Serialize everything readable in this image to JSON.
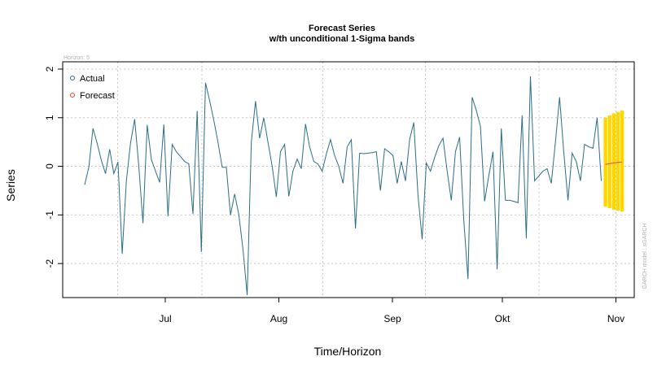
{
  "chart_data": {
    "type": "line",
    "title": "Forecast Series",
    "subtitle": "w/th unconditional 1-Sigma bands",
    "xlabel": "Time/Horizon",
    "ylabel": "Series",
    "horizon_label": "Horizon: 5",
    "model_label": "GARCH model : sGARCH",
    "start_date": "2012-06-09",
    "xlim": [
      "2012-06-03",
      "2012-11-06"
    ],
    "ylim": [
      -2.7,
      2.15
    ],
    "y_ticks": [
      -2,
      -1,
      0,
      1,
      2
    ],
    "x_ticks": [
      {
        "date": "2012-07-01",
        "label": "Jul"
      },
      {
        "date": "2012-08-01",
        "label": "Aug"
      },
      {
        "date": "2012-09-01",
        "label": "Sep"
      },
      {
        "date": "2012-10-01",
        "label": "Okt"
      },
      {
        "date": "2012-11-01",
        "label": "Nov"
      }
    ],
    "grid_x": [
      "2012-06-18",
      "2012-07-11",
      "2012-08-13",
      "2012-09-10",
      "2012-10-11",
      "2012-11-01"
    ],
    "grid_y": [
      -2,
      -1,
      0,
      1,
      2
    ],
    "grid": true,
    "legend": "top-left",
    "series": [
      {
        "name": "Actual",
        "color": "#2b6e87",
        "values": [
          -0.38,
          -0.02,
          0.78,
          0.47,
          0.12,
          -0.15,
          0.35,
          -0.15,
          0.09,
          -1.8,
          -0.3,
          0.48,
          0.97,
          0.0,
          -1.17,
          0.85,
          0.14,
          -0.1,
          -0.33,
          0.86,
          -1.03,
          0.45,
          0.3,
          0.2,
          0.1,
          0.05,
          -0.98,
          1.14,
          -1.76,
          1.72,
          1.35,
          0.95,
          0.5,
          -0.02,
          -0.02,
          -1.0,
          -0.57,
          -0.99,
          -1.7,
          -2.65,
          0.5,
          1.34,
          0.58,
          1.0,
          0.5,
          0.0,
          -0.63,
          0.3,
          0.45,
          -0.62,
          -0.1,
          0.15,
          -0.05,
          0.87,
          0.4,
          0.1,
          0.05,
          -0.1,
          0.25,
          0.55,
          0.22,
          0.0,
          -0.35,
          0.4,
          0.55,
          -1.28,
          0.27,
          0.26,
          0.27,
          0.28,
          0.3,
          -0.5,
          0.36,
          0.3,
          0.22,
          -0.35,
          0.1,
          -0.3,
          0.55,
          0.9,
          -0.6,
          -1.5,
          0.07,
          -0.1,
          0.18,
          0.42,
          0.58,
          -0.1,
          -0.7,
          0.3,
          0.6,
          -1.1,
          -2.32,
          1.42,
          1.15,
          0.82,
          -0.72,
          -0.2,
          0.3,
          -2.12,
          0.78,
          -0.7,
          -0.7,
          -0.72,
          -0.75,
          1.05,
          -1.48,
          1.85,
          -0.3,
          -0.2,
          -0.1,
          -0.05,
          -0.35,
          0.5,
          1.42,
          0.3,
          -0.7,
          0.27,
          0.1,
          -0.3,
          0.45,
          0.4,
          0.37,
          1.0,
          -0.3
        ]
      },
      {
        "name": "Forecast",
        "color": "#e2463a",
        "values": [
          0.04,
          0.055,
          0.07,
          0.08,
          0.09
        ]
      }
    ],
    "bands": {
      "color": "#ffd700",
      "upper": [
        1.0,
        1.05,
        1.09,
        1.12,
        1.15
      ],
      "lower": [
        -0.83,
        -0.86,
        -0.89,
        -0.91,
        -0.93
      ]
    }
  }
}
